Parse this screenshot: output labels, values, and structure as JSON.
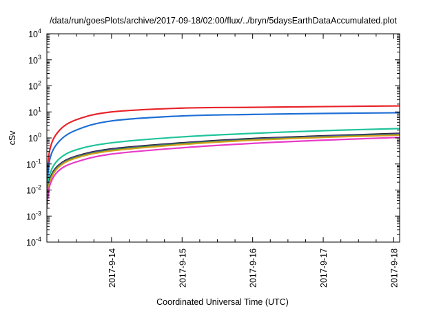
{
  "chart_data": {
    "type": "line",
    "title": "/data/run/goesPlots/archive/2017-09-18/02:00/flux/../bryn/5daysEarthDataAccumulated.plot",
    "xlabel": "Coordinated Universal Time (UTC)",
    "ylabel": "cSv",
    "y_scale": "log",
    "ylim": [
      0.0001,
      10000
    ],
    "xlim": [
      "2017-09-13T02:00",
      "2017-09-18T02:00"
    ],
    "x_ticks": [
      "2017-9-14",
      "2017-9-15",
      "2017-9-16",
      "2017-9-17",
      "2017-9-18"
    ],
    "x_tick_values": [
      "2017-09-14T00:00",
      "2017-09-15T00:00",
      "2017-09-16T00:00",
      "2017-09-17T00:00",
      "2017-09-18T00:00"
    ],
    "y_ticks": [
      {
        "base": "10",
        "exp": "-4",
        "value": 0.0001
      },
      {
        "base": "10",
        "exp": "-3",
        "value": 0.001
      },
      {
        "base": "10",
        "exp": "-2",
        "value": 0.01
      },
      {
        "base": "10",
        "exp": "-1",
        "value": 0.1
      },
      {
        "base": "10",
        "exp": "0",
        "value": 1
      },
      {
        "base": "10",
        "exp": "1",
        "value": 10
      },
      {
        "base": "10",
        "exp": "2",
        "value": 100
      },
      {
        "base": "10",
        "exp": "3",
        "value": 1000
      },
      {
        "base": "10",
        "exp": "4",
        "value": 10000
      }
    ],
    "grid": false,
    "legend": "none",
    "series": [
      {
        "color": "#e8232a",
        "x": [
          "2017-09-13T02:00",
          "2017-09-13T03:00",
          "2017-09-13T06:00",
          "2017-09-13T12:00",
          "2017-09-14T00:00",
          "2017-09-15T00:00",
          "2017-09-16T00:00",
          "2017-09-17T00:00",
          "2017-09-18T02:00"
        ],
        "values": [
          0.02,
          0.35,
          1.8,
          5.0,
          10.0,
          14.0,
          15.0,
          16.0,
          17.0
        ]
      },
      {
        "color": "#1f6fd6",
        "x": [
          "2017-09-13T02:00",
          "2017-09-13T03:00",
          "2017-09-13T06:00",
          "2017-09-13T12:00",
          "2017-09-14T00:00",
          "2017-09-15T00:00",
          "2017-09-16T00:00",
          "2017-09-17T00:00",
          "2017-09-18T02:00"
        ],
        "values": [
          0.01,
          0.15,
          0.7,
          2.0,
          4.5,
          7.0,
          8.0,
          8.7,
          9.3
        ]
      },
      {
        "color": "#1fc49a",
        "x": [
          "2017-09-13T02:00",
          "2017-09-13T03:00",
          "2017-09-13T06:00",
          "2017-09-13T12:00",
          "2017-09-14T00:00",
          "2017-09-15T00:00",
          "2017-09-16T00:00",
          "2017-09-17T00:00",
          "2017-09-18T02:00"
        ],
        "values": [
          0.005,
          0.04,
          0.15,
          0.35,
          0.65,
          1.1,
          1.5,
          1.9,
          2.3
        ]
      },
      {
        "color": "#1a1a1a",
        "x": [
          "2017-09-13T02:00",
          "2017-09-13T03:00",
          "2017-09-13T06:00",
          "2017-09-13T12:00",
          "2017-09-14T00:00",
          "2017-09-15T00:00",
          "2017-09-16T00:00",
          "2017-09-17T00:00",
          "2017-09-18T02:00"
        ],
        "values": [
          0.003,
          0.025,
          0.09,
          0.2,
          0.38,
          0.65,
          0.95,
          1.2,
          1.5
        ]
      },
      {
        "color": "#5a3fb8",
        "x": [
          "2017-09-13T02:00",
          "2017-09-13T03:00",
          "2017-09-13T06:00",
          "2017-09-13T12:00",
          "2017-09-14T00:00",
          "2017-09-15T00:00",
          "2017-09-16T00:00",
          "2017-09-17T00:00",
          "2017-09-18T02:00"
        ],
        "values": [
          0.003,
          0.023,
          0.085,
          0.19,
          0.36,
          0.62,
          0.9,
          1.15,
          1.42
        ]
      },
      {
        "color": "#2a8a3a",
        "x": [
          "2017-09-13T02:00",
          "2017-09-13T03:00",
          "2017-09-13T06:00",
          "2017-09-13T12:00",
          "2017-09-14T00:00",
          "2017-09-15T00:00",
          "2017-09-16T00:00",
          "2017-09-17T00:00",
          "2017-09-18T02:00"
        ],
        "values": [
          0.0028,
          0.022,
          0.08,
          0.18,
          0.34,
          0.6,
          0.86,
          1.1,
          1.35
        ]
      },
      {
        "color": "#d6a020",
        "x": [
          "2017-09-13T02:00",
          "2017-09-13T03:00",
          "2017-09-13T06:00",
          "2017-09-13T12:00",
          "2017-09-14T00:00",
          "2017-09-15T00:00",
          "2017-09-16T00:00",
          "2017-09-17T00:00",
          "2017-09-18T02:00"
        ],
        "values": [
          0.0025,
          0.02,
          0.075,
          0.17,
          0.32,
          0.56,
          0.82,
          1.05,
          1.28
        ]
      },
      {
        "color": "#e83ac8",
        "x": [
          "2017-09-13T02:00",
          "2017-09-13T03:00",
          "2017-09-13T06:00",
          "2017-09-13T12:00",
          "2017-09-14T00:00",
          "2017-09-15T00:00",
          "2017-09-16T00:00",
          "2017-09-17T00:00",
          "2017-09-18T02:00"
        ],
        "values": [
          0.002,
          0.015,
          0.055,
          0.12,
          0.24,
          0.42,
          0.62,
          0.82,
          1.05
        ]
      }
    ]
  }
}
